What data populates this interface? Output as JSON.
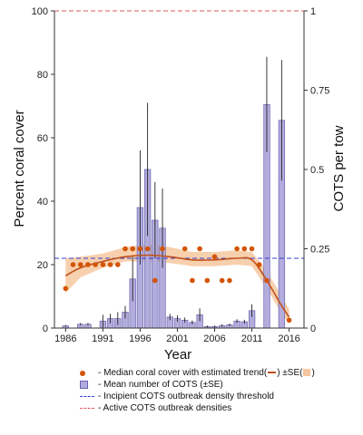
{
  "chart_data": {
    "type": "bar+scatter",
    "xlabel": "Year",
    "ylabel_left": "Percent coral cover",
    "ylabel_right": "COTS per tow",
    "x_ticks": [
      "1986",
      "1991",
      "1996",
      "2001",
      "2006",
      "2011",
      "2016"
    ],
    "y_left_ticks": [
      "0",
      "20",
      "40",
      "60",
      "80",
      "100"
    ],
    "y_right_ticks": [
      "0",
      "0.25",
      "0.5",
      "0.75",
      "1"
    ],
    "xlim": [
      1984.5,
      2018
    ],
    "ylim_left": [
      0,
      100
    ],
    "ylim_right": [
      0,
      1
    ],
    "cots_bars": [
      {
        "year": 1986,
        "value": 0.007,
        "se": 0.003
      },
      {
        "year": 1988,
        "value": 0.012,
        "se": 0.004
      },
      {
        "year": 1989,
        "value": 0.012,
        "se": 0.004
      },
      {
        "year": 1991,
        "value": 0.022,
        "se": 0.02
      },
      {
        "year": 1992,
        "value": 0.03,
        "se": 0.015
      },
      {
        "year": 1993,
        "value": 0.03,
        "se": 0.02
      },
      {
        "year": 1994,
        "value": 0.05,
        "se": 0.02
      },
      {
        "year": 1995,
        "value": 0.155,
        "se": 0.07
      },
      {
        "year": 1996,
        "value": 0.38,
        "se": 0.18
      },
      {
        "year": 1997,
        "value": 0.5,
        "se": 0.21
      },
      {
        "year": 1998,
        "value": 0.34,
        "se": 0.12
      },
      {
        "year": 1999,
        "value": 0.315,
        "se": 0.125
      },
      {
        "year": 2000,
        "value": 0.035,
        "se": 0.01
      },
      {
        "year": 2001,
        "value": 0.03,
        "se": 0.01
      },
      {
        "year": 2002,
        "value": 0.025,
        "se": 0.008
      },
      {
        "year": 2003,
        "value": 0.018,
        "se": 0.006
      },
      {
        "year": 2004,
        "value": 0.042,
        "se": 0.02
      },
      {
        "year": 2005,
        "value": 0.005,
        "se": 0.003
      },
      {
        "year": 2006,
        "value": 0.005,
        "se": 0.003
      },
      {
        "year": 2007,
        "value": 0.008,
        "se": 0.004
      },
      {
        "year": 2008,
        "value": 0.01,
        "se": 0.004
      },
      {
        "year": 2009,
        "value": 0.022,
        "se": 0.006
      },
      {
        "year": 2010,
        "value": 0.02,
        "se": 0.006
      },
      {
        "year": 2011,
        "value": 0.055,
        "se": 0.02
      },
      {
        "year": 2013,
        "value": 0.705,
        "se": 0.15
      },
      {
        "year": 2015,
        "value": 0.655,
        "se": 0.19
      }
    ],
    "coral_points": [
      {
        "year": 1986,
        "value": 12.5
      },
      {
        "year": 1987,
        "value": 20
      },
      {
        "year": 1988,
        "value": 20
      },
      {
        "year": 1989,
        "value": 20
      },
      {
        "year": 1990,
        "value": 20
      },
      {
        "year": 1991,
        "value": 20
      },
      {
        "year": 1992,
        "value": 20
      },
      {
        "year": 1993,
        "value": 20
      },
      {
        "year": 1994,
        "value": 25
      },
      {
        "year": 1995,
        "value": 25
      },
      {
        "year": 1996,
        "value": 25
      },
      {
        "year": 1997,
        "value": 25
      },
      {
        "year": 1998,
        "value": 15
      },
      {
        "year": 1999,
        "value": 25
      },
      {
        "year": 2002,
        "value": 25
      },
      {
        "year": 2003,
        "value": 15
      },
      {
        "year": 2004,
        "value": 25
      },
      {
        "year": 2005,
        "value": 15
      },
      {
        "year": 2006,
        "value": 22.5
      },
      {
        "year": 2007,
        "value": 15
      },
      {
        "year": 2008,
        "value": 15
      },
      {
        "year": 2009,
        "value": 25
      },
      {
        "year": 2010,
        "value": 25
      },
      {
        "year": 2011,
        "value": 25
      },
      {
        "year": 2012,
        "value": 20
      },
      {
        "year": 2013,
        "value": 15
      },
      {
        "year": 2016,
        "value": 2.5
      }
    ],
    "trend": [
      {
        "year": 1986,
        "value": 16.5,
        "lo": 11,
        "hi": 22
      },
      {
        "year": 1988,
        "value": 19,
        "lo": 16,
        "hi": 22.5
      },
      {
        "year": 1991,
        "value": 21,
        "lo": 19,
        "hi": 23.5
      },
      {
        "year": 1994,
        "value": 22.5,
        "lo": 21,
        "hi": 25.5
      },
      {
        "year": 1997,
        "value": 23,
        "lo": 21,
        "hi": 26.5
      },
      {
        "year": 2000,
        "value": 22.5,
        "lo": 20.5,
        "hi": 25.5
      },
      {
        "year": 2003,
        "value": 21.5,
        "lo": 19.5,
        "hi": 24
      },
      {
        "year": 2006,
        "value": 21.5,
        "lo": 19.5,
        "hi": 24
      },
      {
        "year": 2009,
        "value": 22,
        "lo": 20,
        "hi": 24.5
      },
      {
        "year": 2011,
        "value": 21.5,
        "lo": 19.5,
        "hi": 24
      },
      {
        "year": 2013,
        "value": 15,
        "lo": 12.5,
        "hi": 18
      },
      {
        "year": 2015,
        "value": 7,
        "lo": 4.5,
        "hi": 10
      },
      {
        "year": 2016,
        "value": 3.5,
        "lo": 1.5,
        "hi": 6
      }
    ],
    "incipient_threshold": 0.22,
    "active_outbreak_line": 1.0,
    "colors": {
      "bar_fill": "#b3acdd",
      "bar_stroke": "#6a64b0",
      "points": "#d35400",
      "trend": "#c0501a",
      "band": "#f6c8a0",
      "incipient": "#3b3bd6",
      "active": "#e05a5a"
    }
  },
  "legend": {
    "coral_prefix": "- Median coral cover with estimated trend(",
    "coral_mid": ") ±SE(",
    "coral_suffix": ")",
    "cots": "- Mean number of COTS (±SE)",
    "incipient": "- Incipient COTS outbreak density threshold",
    "active": "- Active COTS outbreak densities"
  }
}
